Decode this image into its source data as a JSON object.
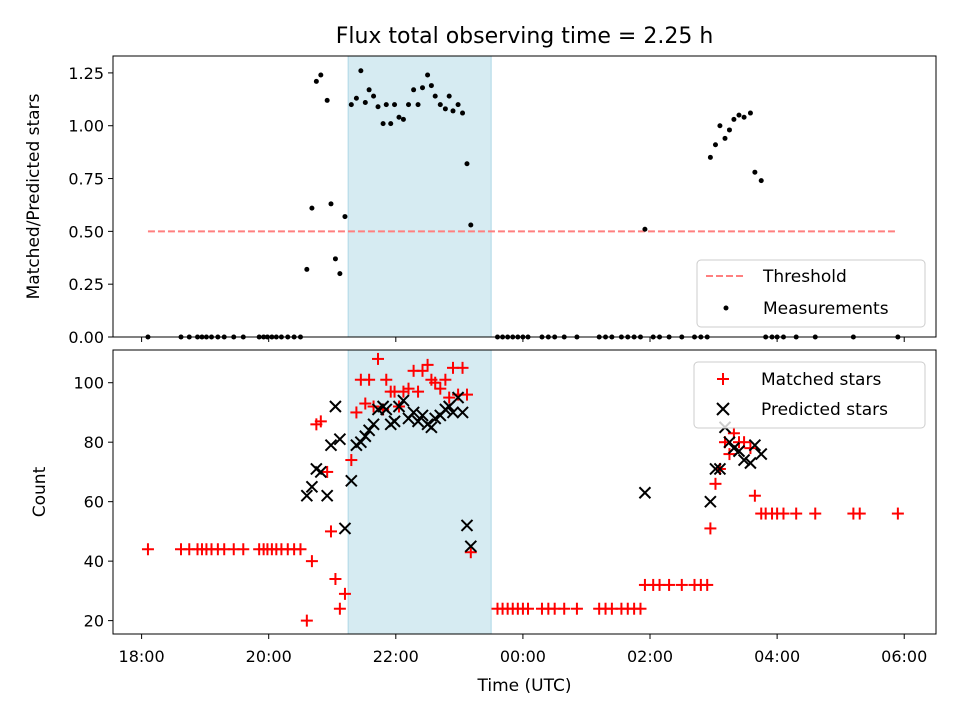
{
  "chart_data": [
    {
      "type": "scatter",
      "title": "Flux total observing time = 2.25 h",
      "xlabel": "",
      "ylabel": "Matched/Predicted stars",
      "ylim": [
        0,
        1.33
      ],
      "yticks": [
        0.0,
        0.25,
        0.5,
        0.75,
        1.0,
        1.25
      ],
      "ytick_labels": [
        "0.00",
        "0.25",
        "0.50",
        "0.75",
        "1.00",
        "1.25"
      ],
      "xlim": [
        17.55,
        30.5
      ],
      "shaded_span": [
        21.25,
        23.5
      ],
      "legend": "bottom-right",
      "threshold": {
        "name": "Threshold",
        "x": [
          18.1,
          29.9
        ],
        "y": 0.5,
        "color": "#ff7f7f",
        "style": "dashed"
      },
      "series": [
        {
          "name": "Measurements",
          "color": "#000000",
          "marker": "dot",
          "points": [
            [
              18.1,
              0
            ],
            [
              18.62,
              0
            ],
            [
              18.75,
              0
            ],
            [
              18.88,
              0
            ],
            [
              18.95,
              0
            ],
            [
              19.02,
              0
            ],
            [
              19.1,
              0
            ],
            [
              19.2,
              0
            ],
            [
              19.3,
              0
            ],
            [
              19.45,
              0
            ],
            [
              19.6,
              0
            ],
            [
              19.85,
              0
            ],
            [
              19.92,
              0
            ],
            [
              19.98,
              0
            ],
            [
              20.05,
              0
            ],
            [
              20.12,
              0
            ],
            [
              20.2,
              0
            ],
            [
              20.3,
              0
            ],
            [
              20.4,
              0
            ],
            [
              20.5,
              0
            ],
            [
              20.6,
              0.32
            ],
            [
              20.68,
              0.61
            ],
            [
              20.75,
              1.21
            ],
            [
              20.82,
              1.24
            ],
            [
              20.92,
              1.12
            ],
            [
              20.98,
              0.63
            ],
            [
              21.05,
              0.37
            ],
            [
              21.12,
              0.3
            ],
            [
              21.2,
              0.57
            ],
            [
              21.3,
              1.1
            ],
            [
              21.38,
              1.13
            ],
            [
              21.45,
              1.26
            ],
            [
              21.52,
              1.11
            ],
            [
              21.58,
              1.17
            ],
            [
              21.65,
              1.14
            ],
            [
              21.72,
              1.09
            ],
            [
              21.8,
              1.01
            ],
            [
              21.85,
              1.1
            ],
            [
              21.92,
              1.01
            ],
            [
              21.98,
              1.1
            ],
            [
              22.05,
              1.04
            ],
            [
              22.12,
              1.03
            ],
            [
              22.2,
              1.1
            ],
            [
              22.28,
              1.17
            ],
            [
              22.35,
              1.1
            ],
            [
              22.42,
              1.18
            ],
            [
              22.5,
              1.24
            ],
            [
              22.56,
              1.19
            ],
            [
              22.62,
              1.14
            ],
            [
              22.7,
              1.1
            ],
            [
              22.78,
              1.08
            ],
            [
              22.84,
              1.14
            ],
            [
              22.9,
              1.07
            ],
            [
              22.98,
              1.1
            ],
            [
              23.05,
              1.06
            ],
            [
              23.12,
              0.82
            ],
            [
              23.18,
              0.53
            ],
            [
              23.6,
              0
            ],
            [
              23.68,
              0
            ],
            [
              23.76,
              0
            ],
            [
              23.84,
              0
            ],
            [
              23.92,
              0
            ],
            [
              24.0,
              0
            ],
            [
              24.08,
              0
            ],
            [
              24.3,
              0
            ],
            [
              24.4,
              0
            ],
            [
              24.5,
              0
            ],
            [
              24.65,
              0
            ],
            [
              24.85,
              0
            ],
            [
              25.2,
              0
            ],
            [
              25.3,
              0
            ],
            [
              25.4,
              0
            ],
            [
              25.55,
              0
            ],
            [
              25.65,
              0
            ],
            [
              25.75,
              0
            ],
            [
              25.85,
              0
            ],
            [
              25.92,
              0.51
            ],
            [
              26.05,
              0
            ],
            [
              26.15,
              0
            ],
            [
              26.3,
              0
            ],
            [
              26.5,
              0
            ],
            [
              26.7,
              0
            ],
            [
              26.8,
              0
            ],
            [
              26.9,
              0
            ],
            [
              26.95,
              0.85
            ],
            [
              27.03,
              0.91
            ],
            [
              27.1,
              1.0
            ],
            [
              27.18,
              0.94
            ],
            [
              27.25,
              0.98
            ],
            [
              27.32,
              1.03
            ],
            [
              27.4,
              1.05
            ],
            [
              27.48,
              1.04
            ],
            [
              27.58,
              1.06
            ],
            [
              27.65,
              0.78
            ],
            [
              27.75,
              0.74
            ],
            [
              27.82,
              0
            ],
            [
              27.92,
              0
            ],
            [
              28.0,
              0
            ],
            [
              28.1,
              0
            ],
            [
              28.3,
              0
            ],
            [
              28.6,
              0
            ],
            [
              29.2,
              0
            ],
            [
              29.9,
              0
            ]
          ]
        }
      ]
    },
    {
      "type": "scatter",
      "title": "",
      "xlabel": "Time (UTC)",
      "ylabel": "Count",
      "ylim": [
        15.5,
        111
      ],
      "yticks": [
        20,
        40,
        60,
        80,
        100
      ],
      "ytick_labels": [
        "20",
        "40",
        "60",
        "80",
        "100"
      ],
      "xlim": [
        17.55,
        30.5
      ],
      "xticks": [
        18,
        20,
        22,
        24,
        26,
        28,
        30
      ],
      "xtick_labels": [
        "18:00",
        "20:00",
        "22:00",
        "00:00",
        "02:00",
        "04:00",
        "06:00"
      ],
      "shaded_span": [
        21.25,
        23.5
      ],
      "legend": "top-right",
      "series": [
        {
          "name": "Matched stars",
          "color": "#ff0000",
          "marker": "plus",
          "points": [
            [
              18.1,
              44
            ],
            [
              18.62,
              44
            ],
            [
              18.75,
              44
            ],
            [
              18.88,
              44
            ],
            [
              18.95,
              44
            ],
            [
              19.02,
              44
            ],
            [
              19.1,
              44
            ],
            [
              19.2,
              44
            ],
            [
              19.3,
              44
            ],
            [
              19.45,
              44
            ],
            [
              19.6,
              44
            ],
            [
              19.85,
              44
            ],
            [
              19.92,
              44
            ],
            [
              19.98,
              44
            ],
            [
              20.05,
              44
            ],
            [
              20.12,
              44
            ],
            [
              20.2,
              44
            ],
            [
              20.3,
              44
            ],
            [
              20.4,
              44
            ],
            [
              20.5,
              44
            ],
            [
              20.6,
              20
            ],
            [
              20.68,
              40
            ],
            [
              20.75,
              86
            ],
            [
              20.82,
              87
            ],
            [
              20.92,
              70
            ],
            [
              20.98,
              50
            ],
            [
              21.05,
              34
            ],
            [
              21.12,
              24
            ],
            [
              21.2,
              29
            ],
            [
              21.3,
              74
            ],
            [
              21.38,
              90
            ],
            [
              21.45,
              101
            ],
            [
              21.52,
              93
            ],
            [
              21.58,
              101
            ],
            [
              21.65,
              92
            ],
            [
              21.72,
              108
            ],
            [
              21.8,
              91
            ],
            [
              21.85,
              101
            ],
            [
              21.92,
              97
            ],
            [
              21.98,
              97
            ],
            [
              22.05,
              92
            ],
            [
              22.12,
              97
            ],
            [
              22.2,
              98
            ],
            [
              22.28,
              104
            ],
            [
              22.35,
              97
            ],
            [
              22.42,
              104
            ],
            [
              22.5,
              106
            ],
            [
              22.56,
              101
            ],
            [
              22.62,
              100
            ],
            [
              22.7,
              98
            ],
            [
              22.78,
              101
            ],
            [
              22.84,
              95
            ],
            [
              22.9,
              105
            ],
            [
              22.98,
              96
            ],
            [
              23.05,
              105
            ],
            [
              23.12,
              96
            ],
            [
              23.18,
              43
            ],
            [
              23.6,
              24
            ],
            [
              23.68,
              24
            ],
            [
              23.76,
              24
            ],
            [
              23.84,
              24
            ],
            [
              23.92,
              24
            ],
            [
              24.0,
              24
            ],
            [
              24.08,
              24
            ],
            [
              24.3,
              24
            ],
            [
              24.4,
              24
            ],
            [
              24.5,
              24
            ],
            [
              24.65,
              24
            ],
            [
              24.85,
              24
            ],
            [
              25.2,
              24
            ],
            [
              25.3,
              24
            ],
            [
              25.4,
              24
            ],
            [
              25.55,
              24
            ],
            [
              25.65,
              24
            ],
            [
              25.75,
              24
            ],
            [
              25.85,
              24
            ],
            [
              25.92,
              32
            ],
            [
              26.05,
              32
            ],
            [
              26.15,
              32
            ],
            [
              26.3,
              32
            ],
            [
              26.5,
              32
            ],
            [
              26.7,
              32
            ],
            [
              26.8,
              32
            ],
            [
              26.9,
              32
            ],
            [
              26.95,
              51
            ],
            [
              27.03,
              66
            ],
            [
              27.1,
              71
            ],
            [
              27.18,
              80
            ],
            [
              27.25,
              76
            ],
            [
              27.32,
              83
            ],
            [
              27.4,
              80
            ],
            [
              27.48,
              80
            ],
            [
              27.58,
              78
            ],
            [
              27.65,
              62
            ],
            [
              27.75,
              56
            ],
            [
              27.82,
              56
            ],
            [
              27.92,
              56
            ],
            [
              28.0,
              56
            ],
            [
              28.1,
              56
            ],
            [
              28.3,
              56
            ],
            [
              28.6,
              56
            ],
            [
              29.2,
              56
            ],
            [
              29.3,
              56
            ],
            [
              29.9,
              56
            ]
          ]
        },
        {
          "name": "Predicted stars",
          "color": "#000000",
          "marker": "x",
          "points": [
            [
              20.6,
              62
            ],
            [
              20.68,
              65
            ],
            [
              20.75,
              71
            ],
            [
              20.82,
              70
            ],
            [
              20.92,
              62
            ],
            [
              20.98,
              79
            ],
            [
              21.05,
              92
            ],
            [
              21.12,
              81
            ],
            [
              21.2,
              51
            ],
            [
              21.3,
              67
            ],
            [
              21.38,
              79
            ],
            [
              21.45,
              80
            ],
            [
              21.52,
              82
            ],
            [
              21.58,
              84
            ],
            [
              21.65,
              86
            ],
            [
              21.72,
              91
            ],
            [
              21.8,
              92
            ],
            [
              21.85,
              91
            ],
            [
              21.92,
              86
            ],
            [
              21.98,
              87
            ],
            [
              22.05,
              92
            ],
            [
              22.12,
              94
            ],
            [
              22.2,
              88
            ],
            [
              22.28,
              90
            ],
            [
              22.35,
              87
            ],
            [
              22.42,
              89
            ],
            [
              22.5,
              86
            ],
            [
              22.56,
              85
            ],
            [
              22.62,
              88
            ],
            [
              22.7,
              89
            ],
            [
              22.78,
              91
            ],
            [
              22.84,
              92
            ],
            [
              22.9,
              90
            ],
            [
              22.98,
              95
            ],
            [
              23.05,
              90
            ],
            [
              23.12,
              52
            ],
            [
              23.18,
              45
            ],
            [
              25.92,
              63
            ],
            [
              26.95,
              60
            ],
            [
              27.03,
              71
            ],
            [
              27.1,
              71
            ],
            [
              27.18,
              85
            ],
            [
              27.25,
              80
            ],
            [
              27.32,
              78
            ],
            [
              27.4,
              77
            ],
            [
              27.48,
              74
            ],
            [
              27.58,
              73
            ],
            [
              27.65,
              79
            ],
            [
              27.75,
              76
            ]
          ]
        }
      ]
    }
  ]
}
